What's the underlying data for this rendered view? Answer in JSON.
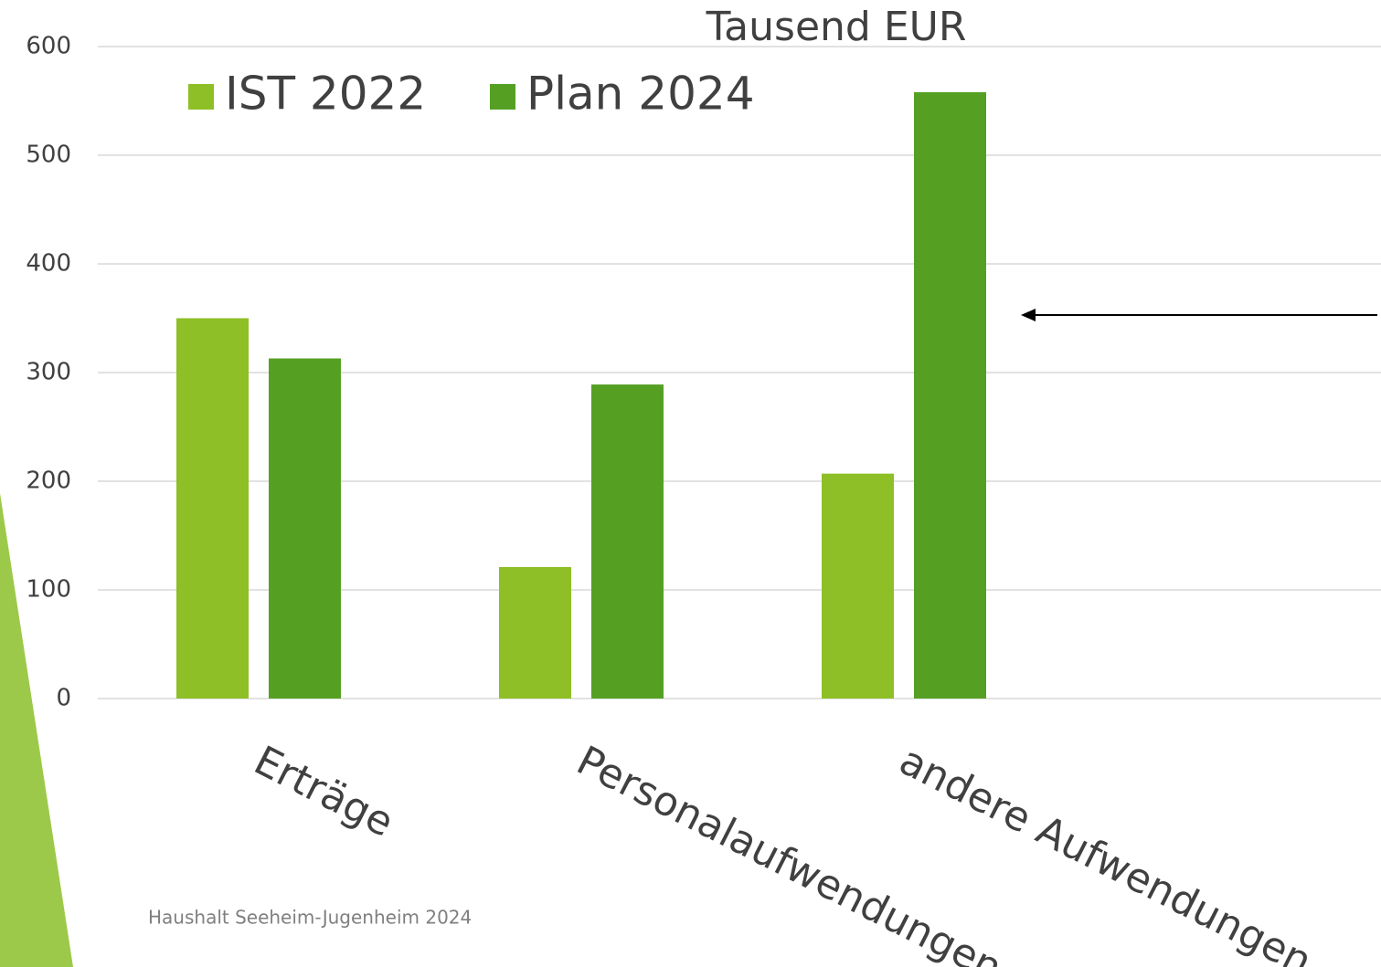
{
  "chart_data": {
    "type": "bar",
    "title": "Tausend EUR",
    "categories": [
      "Erträge",
      "Personalaufwendungen",
      "andere Aufwendungen"
    ],
    "series": [
      {
        "name": "IST 2022",
        "color": "#8fbf26",
        "values": [
          350,
          121,
          207
        ]
      },
      {
        "name": "Plan 2024",
        "color": "#55a022",
        "values": [
          313,
          289,
          558
        ]
      }
    ],
    "ylim": [
      0,
      600
    ],
    "yticks": [
      0,
      100,
      200,
      300,
      400,
      500,
      600
    ],
    "grid": true,
    "footer": "Haushalt Seeheim-Jugenheim 2024"
  }
}
